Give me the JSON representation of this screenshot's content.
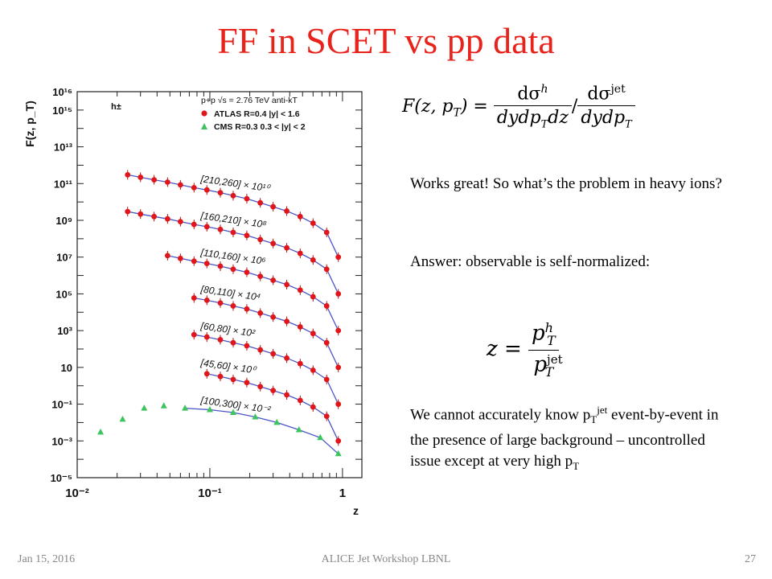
{
  "slide": {
    "title": "FF in SCET vs pp data",
    "text1": "Works great! So what’s the problem in heavy ions?",
    "text2": "Answer: observable is self-normalized:",
    "text3_pre": "We cannot accurately know p",
    "text3_sub": "T",
    "text3_sup": "jet",
    "text3_post": " event-by-event in the presence of large background – uncontrolled issue except at very high p",
    "text3_sub2": "T",
    "footer_left": "Jan 15, 2016",
    "footer_center": "ALICE Jet Workshop LBNL",
    "footer_right": "27"
  },
  "formula1": {
    "lhs": "F(z, p",
    "lhs_sub": "T",
    "lhs_close": ") =",
    "num1": "dσ",
    "num1_sup": "h",
    "den1": "dydp",
    "den1_sub": "T",
    "den1_tail": "dz",
    "slash": "/",
    "num2": "dσ",
    "num2_sup": "jet",
    "den2": "dydp",
    "den2_sub": "T"
  },
  "formula2": {
    "lhs": "z =",
    "num": "p",
    "num_sup": "h",
    "num_sub": "T",
    "den": "p",
    "den_sup": "jet",
    "den_sub": "T"
  },
  "chart_data": {
    "type": "scatter",
    "xscale": "log",
    "yscale": "log",
    "xlim": [
      0.01,
      1.4
    ],
    "ylim": [
      1e-05,
      10000000000000000
    ],
    "xlabel": "z",
    "ylabel": "F(z, p_T)",
    "x_tick_labels": [
      "10⁻²",
      "10⁻¹",
      "1"
    ],
    "y_tick_labels": [
      "10⁻⁵",
      "10⁻³",
      "10⁻¹",
      "10",
      "10³",
      "10⁵",
      "10⁷",
      "10⁹",
      "10¹¹",
      "10¹³",
      "10¹⁵",
      "10¹⁶"
    ],
    "grid": false,
    "hadron_label": "h±",
    "legend": {
      "placement": "top-right",
      "header": "p+p √s = 2.76 TeV anti-kT",
      "entries": [
        {
          "label": "ATLAS R=0.4 |y| < 1.6",
          "color": "#e0161a",
          "marker": "circle"
        },
        {
          "label": "CMS   R=0.3 0.3 < |y| < 2",
          "color": "#3cc45e",
          "marker": "triangle"
        }
      ]
    },
    "series": [
      {
        "name": "[210,260] × 10¹⁰",
        "experiment": "ATLAS",
        "x": [
          0.024,
          0.03,
          0.038,
          0.048,
          0.06,
          0.076,
          0.095,
          0.12,
          0.15,
          0.19,
          0.24,
          0.3,
          0.38,
          0.48,
          0.6,
          0.76,
          0.93
        ],
        "y": [
          300000000000.0,
          220000000000.0,
          160000000000.0,
          120000000000.0,
          85000000000.0,
          60000000000.0,
          45000000000.0,
          32000000000.0,
          22000000000.0,
          15000000000.0,
          9000000000.0,
          5500000000.0,
          3200000000.0,
          1600000000.0,
          700000000.0,
          220000000.0,
          10000000.0
        ]
      },
      {
        "name": "[160,210] × 10⁸",
        "experiment": "ATLAS",
        "x": [
          0.024,
          0.03,
          0.038,
          0.048,
          0.06,
          0.076,
          0.095,
          0.12,
          0.15,
          0.19,
          0.24,
          0.3,
          0.38,
          0.48,
          0.6,
          0.76,
          0.93
        ],
        "y": [
          3000000000.0,
          2200000000.0,
          1600000000.0,
          1200000000.0,
          850000000.0,
          600000000.0,
          450000000.0,
          320000000.0,
          220000000.0,
          150000000.0,
          90000000.0,
          55000000.0,
          32000000.0,
          16000000.0,
          7000000.0,
          2200000.0,
          100000.0
        ]
      },
      {
        "name": "[110,160] × 10⁶",
        "experiment": "ATLAS",
        "x": [
          0.048,
          0.06,
          0.076,
          0.095,
          0.12,
          0.15,
          0.19,
          0.24,
          0.3,
          0.38,
          0.48,
          0.6,
          0.76,
          0.93
        ],
        "y": [
          12000000.0,
          8500000.0,
          6000000.0,
          4500000.0,
          3200000.0,
          2200000.0,
          1500000.0,
          900000.0,
          550000.0,
          320000.0,
          160000.0,
          70000.0,
          22000.0,
          1000.0
        ]
      },
      {
        "name": "[80,110] × 10⁴",
        "experiment": "ATLAS",
        "x": [
          0.076,
          0.095,
          0.12,
          0.15,
          0.19,
          0.24,
          0.3,
          0.38,
          0.48,
          0.6,
          0.76,
          0.93
        ],
        "y": [
          60000.0,
          45000.0,
          32000.0,
          22000.0,
          15000.0,
          9000.0,
          5500.0,
          3200.0,
          1600.0,
          700.0,
          220.0,
          10.0
        ]
      },
      {
        "name": "[60,80] × 10²",
        "experiment": "ATLAS",
        "x": [
          0.076,
          0.095,
          0.12,
          0.15,
          0.19,
          0.24,
          0.3,
          0.38,
          0.48,
          0.6,
          0.76,
          0.93
        ],
        "y": [
          600,
          450,
          320,
          220,
          150,
          90,
          55,
          32,
          16,
          7,
          2.2,
          0.1
        ]
      },
      {
        "name": "[45,60] × 10⁰",
        "experiment": "ATLAS",
        "x": [
          0.095,
          0.12,
          0.15,
          0.19,
          0.24,
          0.3,
          0.38,
          0.48,
          0.6,
          0.76,
          0.93
        ],
        "y": [
          4.5,
          3.2,
          2.2,
          1.5,
          0.9,
          0.55,
          0.32,
          0.16,
          0.07,
          0.022,
          0.001
        ]
      },
      {
        "name": "[100,300] × 10⁻²",
        "experiment": "CMS",
        "x": [
          0.015,
          0.022,
          0.032,
          0.045,
          0.065,
          0.1,
          0.15,
          0.22,
          0.32,
          0.47,
          0.68,
          0.93
        ],
        "y": [
          0.003,
          0.015,
          0.06,
          0.08,
          0.06,
          0.05,
          0.035,
          0.02,
          0.01,
          0.004,
          0.0015,
          0.0002
        ]
      }
    ]
  }
}
